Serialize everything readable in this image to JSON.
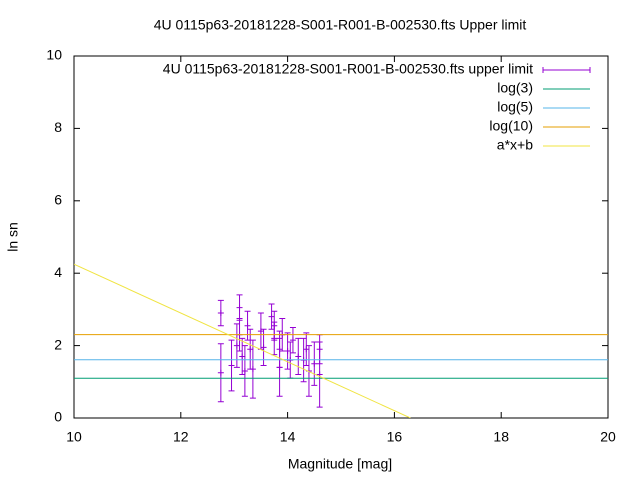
{
  "chart_data": {
    "type": "scatter",
    "title": "4U 0115p63-20181228-S001-R001-B-002530.fts Upper limit",
    "xlabel": "Magnitude [mag]",
    "ylabel": "ln sn",
    "xlim": [
      10,
      20
    ],
    "xticks": [
      10,
      12,
      14,
      16,
      18,
      20
    ],
    "ylim": [
      0,
      10
    ],
    "yticks": [
      0,
      2,
      4,
      6,
      8,
      10
    ],
    "legend": "top-right",
    "series": [
      {
        "name": "4U 0115p63-20181228-S001-R001-B-002530.fts upper limit",
        "color": "#9400d3",
        "style": "errorbars",
        "x": [
          12.75,
          12.75,
          12.95,
          13.05,
          13.1,
          13.1,
          13.15,
          13.2,
          13.25,
          13.3,
          13.35,
          13.5,
          13.55,
          13.7,
          13.75,
          13.75,
          13.85,
          13.85,
          13.9,
          14.0,
          14.05,
          14.1,
          14.2,
          14.3,
          14.35,
          14.4,
          14.5,
          14.6,
          14.6
        ],
        "values": [
          2.9,
          1.25,
          1.45,
          2.0,
          3.05,
          2.3,
          1.7,
          1.3,
          2.55,
          1.9,
          1.35,
          2.4,
          1.95,
          2.8,
          2.55,
          2.2,
          1.9,
          1.4,
          2.3,
          1.85,
          1.6,
          2.15,
          1.7,
          1.6,
          1.9,
          1.3,
          1.5,
          1.2,
          1.9
        ],
        "errors": [
          0.35,
          0.8,
          0.7,
          0.6,
          0.35,
          0.45,
          0.5,
          0.7,
          0.4,
          0.55,
          0.8,
          0.5,
          0.5,
          0.35,
          0.4,
          0.45,
          0.5,
          0.8,
          0.45,
          0.5,
          0.5,
          0.35,
          0.5,
          0.6,
          0.45,
          0.7,
          0.6,
          0.9,
          0.4
        ]
      },
      {
        "name": "log(3)",
        "color": "#009e73",
        "style": "lines",
        "x": [
          10,
          20
        ],
        "values": [
          1.0986,
          1.0986
        ]
      },
      {
        "name": "log(5)",
        "color": "#56b4e9",
        "style": "lines",
        "x": [
          10,
          20
        ],
        "values": [
          1.6094,
          1.6094
        ]
      },
      {
        "name": "log(10)",
        "color": "#e69f00",
        "style": "lines",
        "x": [
          10,
          20
        ],
        "values": [
          2.3026,
          2.3026
        ]
      },
      {
        "name": "a*x+b",
        "color": "#f0e442",
        "style": "lines",
        "x": [
          10,
          16.3
        ],
        "values": [
          4.25,
          0
        ]
      }
    ]
  }
}
